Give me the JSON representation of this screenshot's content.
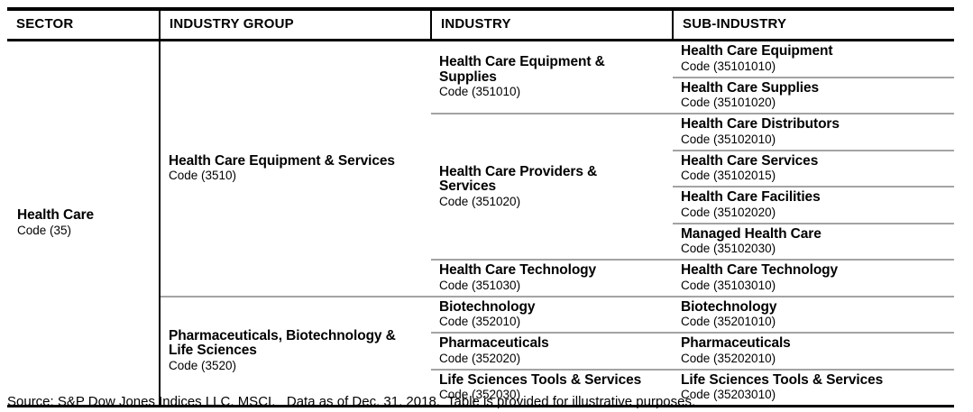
{
  "colors": {
    "background": "#ffffff",
    "text": "#000000",
    "border": "#000000",
    "row_line": "#a3a3a3"
  },
  "table": {
    "columns": [
      "SECTOR",
      "INDUSTRY GROUP",
      "INDUSTRY",
      "SUB-INDUSTRY"
    ],
    "sector": {
      "name": "Health Care",
      "code": "Code (35)"
    },
    "industry_groups": [
      {
        "name": "Health Care Equipment & Services",
        "code": "Code (3510)",
        "industries": [
          {
            "name": "Health Care Equipment & Supplies",
            "code": "Code (351010)",
            "sub_industries": [
              {
                "name": "Health Care Equipment",
                "code": "Code (35101010)"
              },
              {
                "name": "Health Care Supplies",
                "code": "Code (35101020)"
              }
            ]
          },
          {
            "name": "Health Care Providers & Services",
            "code": "Code (351020)",
            "sub_industries": [
              {
                "name": "Health Care Distributors",
                "code": "Code (35102010)"
              },
              {
                "name": "Health Care Services",
                "code": "Code (35102015)"
              },
              {
                "name": "Health Care Facilities",
                "code": "Code (35102020)"
              },
              {
                "name": "Managed Health Care",
                "code": "Code (35102030)"
              }
            ]
          },
          {
            "name": "Health Care Technology",
            "code": "Code (351030)",
            "sub_industries": [
              {
                "name": "Health Care Technology",
                "code": "Code (35103010)"
              }
            ]
          }
        ]
      },
      {
        "name": "Pharmaceuticals, Biotechnology & Life Sciences",
        "code": "Code (3520)",
        "industries": [
          {
            "name": "Biotechnology",
            "code": "Code (352010)",
            "sub_industries": [
              {
                "name": "Biotechnology",
                "code": "Code (35201010)"
              }
            ]
          },
          {
            "name": "Pharmaceuticals",
            "code": "Code (352020)",
            "sub_industries": [
              {
                "name": "Pharmaceuticals",
                "code": "Code (35202010)"
              }
            ]
          },
          {
            "name": "Life Sciences Tools & Services",
            "code": "Code (352030)",
            "sub_industries": [
              {
                "name": "Life Sciences Tools & Services",
                "code": "Code (35203010)"
              }
            ]
          }
        ]
      }
    ]
  },
  "footer": {
    "text": "Source: S&P Dow Jones Indices LLC, MSCI.   Data as of Dec. 31, 2018.  Table is provided for illustrative purposes."
  }
}
